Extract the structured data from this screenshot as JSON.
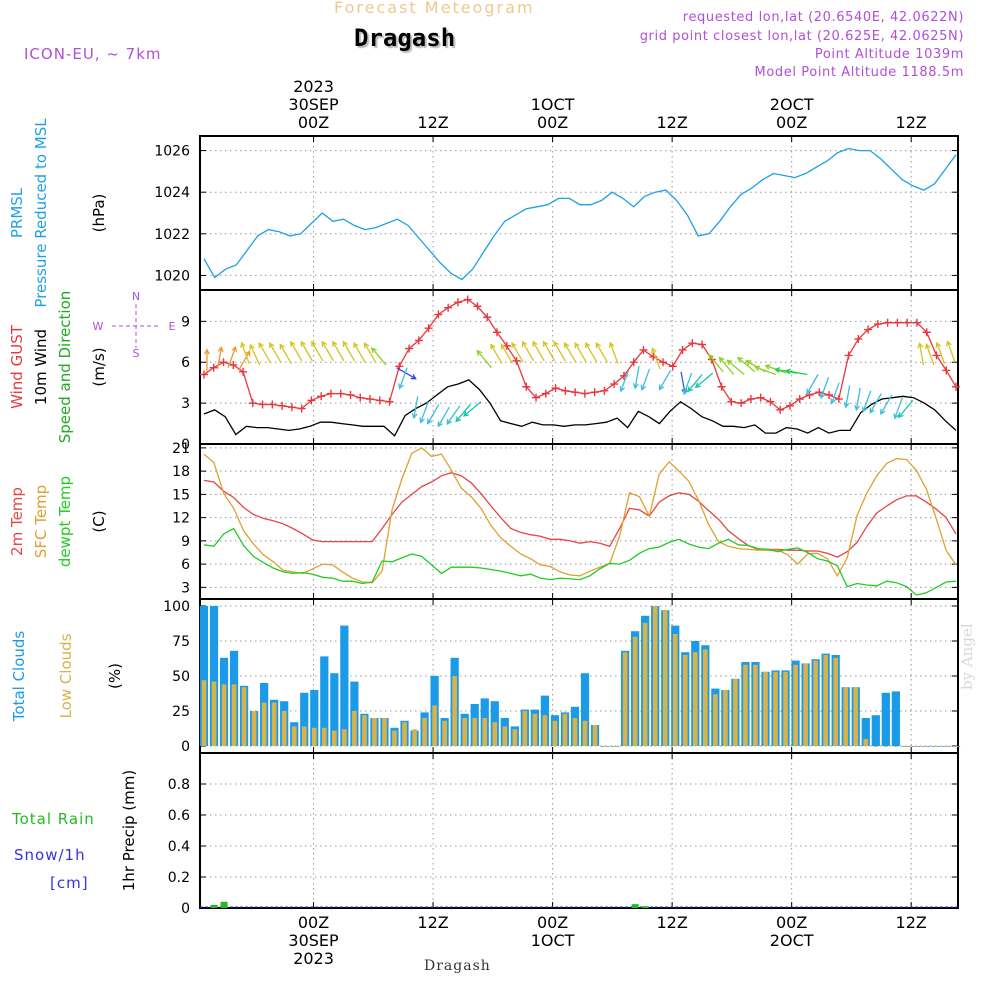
{
  "header": {
    "super_title": "Forecast Meteogram",
    "station": "Dragash",
    "model": "ICON-EU, ~ 7km",
    "requested": "requested lon,lat (20.6540E, 42.0622N)",
    "grid_point": "grid point closest lon,lat (20.625E, 42.0625N)",
    "point_altitude": "Point Altitude 1039m",
    "model_altitude": "Model Point Altitude 1188.5m",
    "bottom_label": "Dragash",
    "watermark": "by Angel"
  },
  "colors": {
    "pressure": "#1fa0e6",
    "gust": "#e8383d",
    "wind": "#000000",
    "t2m": "#e84545",
    "sfc": "#e0a030",
    "dewpt": "#22cc22",
    "total_clouds": "#1b9ae8",
    "low_clouds": "#d8b24a",
    "rain": "#22bb22",
    "snow": "#3333dd",
    "header_gold": "#f0c890",
    "header_purple": "#b04fd8",
    "grid": "#888888"
  },
  "chart_data": [
    {
      "id": "pressure",
      "type": "line",
      "label_lines": [
        {
          "text": "PRMSL",
          "color": "#1fa0e6"
        },
        {
          "text": "Pressure Reduced to MSL",
          "color": "#1fa0e6"
        }
      ],
      "unit": "(hPa)",
      "ylim": [
        1019.3,
        1026.7
      ],
      "yticks": [
        1020,
        1022,
        1024,
        1026
      ],
      "series": [
        {
          "name": "PRMSL",
          "color": "#1fa0e6",
          "values": [
            1020.8,
            1019.9,
            1020.3,
            1020.5,
            1021.2,
            1021.9,
            1022.2,
            1022.1,
            1021.9,
            1022.0,
            1022.5,
            1023.0,
            1022.6,
            1022.7,
            1022.4,
            1022.2,
            1022.3,
            1022.5,
            1022.7,
            1022.4,
            1021.8,
            1021.2,
            1020.6,
            1020.1,
            1019.8,
            1020.3,
            1021.1,
            1021.9,
            1022.6,
            1022.9,
            1023.2,
            1023.3,
            1023.4,
            1023.7,
            1023.7,
            1023.4,
            1023.4,
            1023.6,
            1024.0,
            1023.7,
            1023.3,
            1023.8,
            1024.0,
            1024.1,
            1023.6,
            1022.9,
            1021.9,
            1022.0,
            1022.6,
            1023.3,
            1023.9,
            1024.2,
            1024.6,
            1024.9,
            1024.8,
            1024.7,
            1024.9,
            1025.2,
            1025.5,
            1025.9,
            1026.1,
            1026.0,
            1026.0,
            1025.6,
            1025.1,
            1024.6,
            1024.3,
            1024.1,
            1024.4,
            1025.1,
            1025.8
          ]
        }
      ]
    },
    {
      "id": "wind",
      "type": "line",
      "label_lines": [
        {
          "text": "Wind GUST",
          "color": "#e8383d"
        },
        {
          "text": "10m Wind",
          "color": "#000000"
        },
        {
          "text": "Speed and Direction",
          "color": "#22aa22"
        }
      ],
      "unit": "(m/s)",
      "compass": {
        "north": "N",
        "south": "S",
        "west": "W",
        "east": "E"
      },
      "ylim": [
        0,
        11.3
      ],
      "yticks": [
        0,
        3,
        6,
        9
      ],
      "series": [
        {
          "name": "Wind GUST",
          "color": "#e8383d",
          "marker": "+",
          "values": [
            5.1,
            5.6,
            6.0,
            5.8,
            5.3,
            3.0,
            2.9,
            2.9,
            2.8,
            2.7,
            2.6,
            3.2,
            3.5,
            3.7,
            3.7,
            3.6,
            3.4,
            3.3,
            3.2,
            3.1,
            5.7,
            7.0,
            7.6,
            8.5,
            9.5,
            10.0,
            10.4,
            10.6,
            10.1,
            9.3,
            8.2,
            7.2,
            6.1,
            4.2,
            3.4,
            3.7,
            4.1,
            3.9,
            3.8,
            3.7,
            3.8,
            3.9,
            4.4,
            5.0,
            6.0,
            6.9,
            6.4,
            6.0,
            5.7,
            6.9,
            7.4,
            7.3,
            6.2,
            4.2,
            3.1,
            3.0,
            3.3,
            3.4,
            3.1,
            2.5,
            2.8,
            3.3,
            3.6,
            3.8,
            3.6,
            3.3,
            6.5,
            7.7,
            8.4,
            8.8,
            8.9,
            8.9,
            8.9,
            8.9,
            8.2,
            6.5,
            5.4,
            4.2
          ]
        },
        {
          "name": "10m Wind",
          "color": "#000000",
          "values": [
            2.2,
            2.5,
            2.0,
            0.7,
            1.3,
            1.2,
            1.2,
            1.1,
            1.0,
            1.1,
            1.3,
            1.6,
            1.6,
            1.5,
            1.4,
            1.3,
            1.3,
            1.3,
            0.6,
            2.1,
            2.6,
            3.0,
            3.6,
            4.2,
            4.4,
            4.7,
            4.0,
            3.0,
            1.7,
            1.5,
            1.3,
            1.6,
            1.4,
            1.4,
            1.3,
            1.4,
            1.4,
            1.5,
            1.6,
            1.9,
            1.2,
            2.4,
            2.0,
            1.5,
            2.4,
            3.1,
            2.6,
            2.0,
            1.7,
            1.3,
            1.3,
            1.2,
            1.4,
            0.8,
            0.8,
            1.2,
            1.1,
            0.8,
            1.2,
            0.8,
            1.0,
            1.0,
            2.3,
            2.9,
            3.3,
            3.4,
            3.5,
            3.4,
            3.0,
            2.5,
            1.7,
            1.0
          ]
        }
      ],
      "arrows": {
        "description": "10m wind direction arrows plotted at wind level",
        "from_directions_deg": [
          180,
          190,
          200,
          210,
          160,
          155,
          150,
          150,
          150,
          150,
          150,
          150,
          150,
          150,
          150,
          150,
          150,
          140,
          300,
          20,
          10,
          20,
          30,
          30,
          35,
          40,
          50,
          140,
          150,
          150,
          150,
          150,
          150,
          150,
          150,
          150,
          150,
          150,
          150,
          160,
          20,
          10,
          20,
          160,
          30,
          350,
          20,
          40,
          50,
          140,
          140,
          130,
          130,
          120,
          110,
          110,
          100,
          100,
          30,
          20,
          20,
          10,
          10,
          20,
          30,
          30,
          20,
          40,
          170,
          160,
          160,
          160
        ],
        "speeds": [
          5.3,
          5.5,
          5.6,
          5.4,
          5.9,
          5.8,
          6.0,
          6.0,
          5.9,
          6.1,
          6.1,
          6.1,
          6.1,
          6.1,
          6.1,
          6.0,
          6.0,
          5.8,
          5.6,
          5.6,
          3.5,
          3.1,
          2.9,
          2.7,
          2.8,
          2.9,
          3.1,
          5.6,
          5.9,
          5.9,
          6.0,
          6.1,
          6.1,
          6.1,
          6.1,
          6.0,
          6.0,
          6.0,
          6.0,
          5.9,
          5.4,
          5.7,
          5.5,
          5.5,
          5.4,
          5.3,
          5.2,
          5.1,
          5.2,
          5.3,
          5.1,
          5.1,
          5.3,
          5.3,
          5.1,
          5.2,
          5.2,
          5.1,
          5.1,
          4.9,
          4.5,
          4.3,
          4.1,
          3.9,
          3.7,
          3.6,
          3.4,
          3.2,
          5.8,
          5.8,
          5.9,
          6.0
        ]
      }
    },
    {
      "id": "temperature",
      "type": "line",
      "label_lines": [
        {
          "text": "2m Temp",
          "color": "#e84545"
        },
        {
          "text": "SFC Temp",
          "color": "#e0a030"
        },
        {
          "text": "dewpt Temp",
          "color": "#22cc22"
        }
      ],
      "unit": "(C)",
      "ylim": [
        1.5,
        21.5
      ],
      "yticks": [
        3,
        6,
        9,
        12,
        15,
        18,
        21
      ],
      "series": [
        {
          "name": "2m Temp",
          "color": "#e84545",
          "values": [
            16.8,
            16.6,
            15.4,
            14.6,
            13.3,
            12.4,
            11.9,
            11.6,
            11.2,
            10.6,
            9.9,
            9.1,
            8.9,
            8.9,
            8.9,
            8.9,
            8.9,
            8.9,
            10.6,
            12.4,
            14.0,
            15.0,
            16.0,
            16.6,
            17.4,
            17.8,
            17.4,
            16.5,
            15.1,
            13.5,
            12.0,
            10.6,
            10.1,
            9.8,
            9.6,
            9.2,
            9.2,
            9.0,
            8.7,
            8.9,
            8.7,
            8.3,
            10.6,
            13.2,
            13.0,
            12.2,
            14.0,
            14.8,
            15.2,
            15.0,
            14.1,
            12.9,
            11.8,
            10.3,
            9.3,
            8.4,
            7.9,
            7.9,
            7.9,
            7.8,
            7.8,
            7.7,
            7.7,
            7.4,
            6.9,
            7.6,
            8.8,
            10.9,
            12.6,
            13.5,
            14.3,
            14.8,
            14.8,
            14.0,
            13.1,
            12.0,
            9.9
          ]
        },
        {
          "name": "SFC Temp",
          "color": "#e0a030",
          "values": [
            20.2,
            19.1,
            15.1,
            13.2,
            10.3,
            8.6,
            7.2,
            6.3,
            5.2,
            5.0,
            4.8,
            5.4,
            6.0,
            5.9,
            5.0,
            4.2,
            3.7,
            3.6,
            5.1,
            13.0,
            17.0,
            20.3,
            21.0,
            19.9,
            20.2,
            18.1,
            15.8,
            14.7,
            13.2,
            11.0,
            9.4,
            8.3,
            7.3,
            6.7,
            5.9,
            5.7,
            5.0,
            4.6,
            4.5,
            5.1,
            5.6,
            6.1,
            9.6,
            15.2,
            14.7,
            12.2,
            17.6,
            19.2,
            18.0,
            16.7,
            14.2,
            11.1,
            8.9,
            8.3,
            8.0,
            7.9,
            7.8,
            7.8,
            7.8,
            7.2,
            6.0,
            7.3,
            7.4,
            6.7,
            4.5,
            6.8,
            12.3,
            15.2,
            17.4,
            19.0,
            19.6,
            19.5,
            18.1,
            15.7,
            11.9,
            7.8,
            5.9
          ]
        },
        {
          "name": "dewpt Temp",
          "color": "#22cc22",
          "values": [
            8.5,
            8.3,
            9.9,
            10.6,
            8.4,
            7.0,
            6.2,
            5.5,
            5.0,
            4.8,
            4.9,
            4.7,
            4.3,
            4.2,
            3.8,
            3.8,
            3.5,
            3.7,
            6.4,
            6.3,
            6.8,
            7.3,
            7.0,
            5.9,
            4.8,
            5.6,
            5.6,
            5.6,
            5.5,
            5.3,
            5.1,
            4.8,
            4.5,
            4.7,
            4.2,
            4.0,
            4.2,
            4.1,
            4.0,
            4.5,
            5.4,
            6.1,
            6.0,
            6.5,
            7.4,
            8.0,
            8.2,
            8.8,
            9.2,
            8.6,
            8.2,
            8.0,
            8.7,
            9.2,
            8.5,
            8.4,
            8.0,
            7.9,
            7.6,
            7.9,
            8.1,
            7.5,
            6.7,
            6.4,
            5.8,
            3.1,
            3.5,
            3.3,
            3.2,
            3.8,
            3.6,
            3.1,
            2.0,
            2.3,
            3.0,
            3.7,
            3.8
          ]
        }
      ]
    },
    {
      "id": "clouds",
      "type": "bar",
      "label_lines": [
        {
          "text": "Total Clouds",
          "color": "#1b9ae8"
        },
        {
          "text": "Low Clouds",
          "color": "#d8b24a"
        }
      ],
      "unit": "(%)",
      "ylim": [
        -5,
        105
      ],
      "yticks": [
        0,
        25,
        50,
        75,
        100
      ],
      "series": [
        {
          "name": "Total Clouds",
          "color": "#1b9ae8",
          "values": [
            100,
            100,
            63,
            68,
            43,
            25,
            45,
            33,
            32,
            17,
            38,
            40,
            64,
            52,
            86,
            46,
            23,
            20,
            20,
            13,
            18,
            11,
            24,
            50,
            20,
            63,
            23,
            30,
            34,
            32,
            20,
            14,
            26,
            26,
            36,
            22,
            24,
            28,
            52,
            15,
            0,
            0,
            68,
            82,
            93,
            100,
            97,
            86,
            67,
            75,
            72,
            41,
            40,
            48,
            60,
            60,
            53,
            54,
            54,
            61,
            59,
            62,
            66,
            65,
            42,
            42,
            20,
            22,
            38,
            39,
            0,
            0,
            0,
            0,
            0,
            0
          ]
        },
        {
          "name": "Low Clouds",
          "color": "#d8b24a",
          "values": [
            47,
            46,
            44,
            44,
            42,
            25,
            31,
            31,
            25,
            14,
            14,
            13,
            13,
            11,
            12,
            25,
            22,
            20,
            20,
            11,
            17,
            12,
            20,
            29,
            18,
            50,
            20,
            20,
            20,
            17,
            14,
            12,
            25,
            23,
            22,
            18,
            23,
            20,
            18,
            15,
            0,
            0,
            67,
            78,
            88,
            100,
            97,
            80,
            65,
            67,
            69,
            37,
            40,
            48,
            58,
            58,
            53,
            53,
            53,
            58,
            59,
            61,
            65,
            63,
            42,
            42,
            5,
            0,
            0,
            0,
            0,
            0,
            0,
            0,
            0,
            0
          ]
        }
      ]
    },
    {
      "id": "precip",
      "type": "bar",
      "label_lines": [
        {
          "text": "Total  Rain",
          "color": "#22bb22"
        },
        {
          "text": "Snow/1h",
          "color": "#3333dd"
        },
        {
          "text": "[cm]",
          "color": "#3333dd"
        }
      ],
      "unit": "1hr Precip (mm)",
      "ylim": [
        0,
        1.0
      ],
      "yticks": [
        0,
        0.2,
        0.4,
        0.6,
        0.8
      ],
      "ytick_labels": [
        "0",
        "0.2",
        "0.4",
        "0.6",
        "0.8"
      ],
      "series": [
        {
          "name": "Total Rain",
          "color": "#22bb22",
          "values": [
            0,
            0.02,
            0.04,
            0,
            0,
            0,
            0,
            0,
            0,
            0,
            0,
            0,
            0,
            0,
            0,
            0,
            0,
            0,
            0,
            0,
            0,
            0,
            0,
            0,
            0,
            0,
            0,
            0,
            0,
            0,
            0,
            0,
            0,
            0,
            0,
            0,
            0,
            0,
            0,
            0,
            0,
            0,
            0,
            0.025,
            0.012,
            0,
            0,
            0,
            0,
            0,
            0,
            0,
            0,
            0,
            0,
            0,
            0,
            0,
            0,
            0,
            0,
            0,
            0,
            0,
            0,
            0,
            0,
            0,
            0,
            0,
            0,
            0,
            0,
            0,
            0,
            0
          ]
        }
      ]
    }
  ],
  "time_axis": {
    "top_ticks": [
      {
        "hour": 24,
        "lines": [
          "2023",
          "30SEP",
          "00Z"
        ]
      },
      {
        "hour": 36,
        "lines": [
          "12Z"
        ]
      },
      {
        "hour": 48,
        "lines": [
          "1OCT",
          "00Z"
        ]
      },
      {
        "hour": 60,
        "lines": [
          "12Z"
        ]
      },
      {
        "hour": 72,
        "lines": [
          "2OCT",
          "00Z"
        ]
      },
      {
        "hour": 84,
        "lines": [
          "12Z"
        ]
      }
    ],
    "bottom_ticks": [
      {
        "hour": 24,
        "lines": [
          "00Z",
          "30SEP",
          "2023"
        ]
      },
      {
        "hour": 36,
        "lines": [
          "12Z"
        ]
      },
      {
        "hour": 48,
        "lines": [
          "00Z",
          "1OCT"
        ]
      },
      {
        "hour": 60,
        "lines": [
          "12Z"
        ]
      },
      {
        "hour": 72,
        "lines": [
          "00Z",
          "2OCT"
        ]
      },
      {
        "hour": 84,
        "lines": [
          "12Z"
        ]
      }
    ],
    "xlim_hours": [
      12.6,
      88.7
    ]
  }
}
